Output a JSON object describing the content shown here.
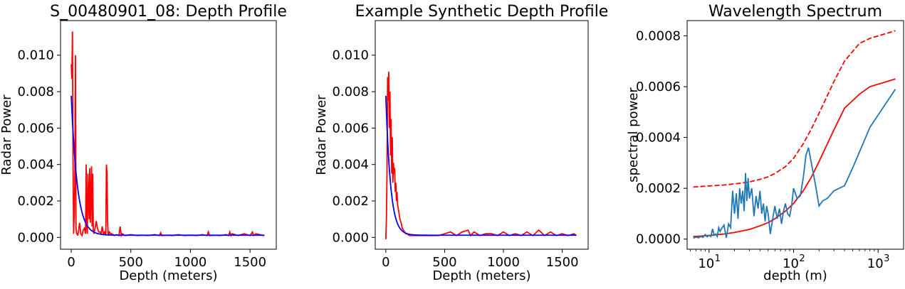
{
  "chart_data": [
    {
      "type": "line",
      "title": "S_00480901_08: Depth Profile",
      "xlabel": "Depth (meters)",
      "ylabel": "Radar Power",
      "xlim": [
        -90,
        1720
      ],
      "ylim": [
        -0.00065,
        0.0119
      ],
      "xscale": "linear",
      "xticks": [
        0,
        500,
        1000,
        1500
      ],
      "xtick_labels": [
        "0",
        "500",
        "1000",
        "1500"
      ],
      "yticks": [
        0.0,
        0.002,
        0.004,
        0.006,
        0.008,
        0.01
      ],
      "ytick_labels": [
        "0.000",
        "0.002",
        "0.004",
        "0.006",
        "0.008",
        "0.010"
      ],
      "grid": false,
      "series": [
        {
          "color": "#ff0000",
          "x": [
            0,
            5,
            10,
            15,
            20,
            25,
            30,
            35,
            40,
            45,
            50,
            55,
            60,
            70,
            80,
            90,
            100,
            110,
            120,
            125,
            130,
            135,
            140,
            150,
            155,
            160,
            170,
            175,
            180,
            185,
            190,
            200,
            210,
            220,
            230,
            240,
            250,
            260,
            270,
            280,
            290,
            295,
            300,
            305,
            310,
            320,
            330,
            340,
            360,
            380,
            400,
            410,
            420,
            430,
            450,
            500,
            550,
            600,
            650,
            700,
            740,
            750,
            760,
            800,
            850,
            900,
            950,
            1000,
            1050,
            1100,
            1140,
            1150,
            1160,
            1200,
            1250,
            1300,
            1320,
            1330,
            1340,
            1350,
            1400,
            1450,
            1500,
            1520,
            1530,
            1550,
            1600,
            1620
          ],
          "y": [
            0.0095,
            0.0087,
            0.0113,
            0.004,
            0.0002,
            0.0013,
            0.003,
            0.01,
            0.0005,
            0.0002,
            0.0002,
            0.0001,
            0.0003,
            0.0008,
            0.0002,
            0.0001,
            0.0004,
            0.0005,
            0.0002,
            0.004,
            0.0006,
            0.0002,
            0.0035,
            0.001,
            0.0038,
            0.0008,
            0.0039,
            0.0006,
            0.0035,
            0.0004,
            0.0002,
            0.0005,
            0.0009,
            0.0005,
            0.0003,
            0.0003,
            0.0002,
            0.0006,
            0.0002,
            0.0003,
            0.0001,
            0.004,
            0.0035,
            0.0009,
            0.0001,
            0.0003,
            0.0002,
            0.0002,
            0.0001,
            0.00015,
            0.0001,
            0.0006,
            0.0001,
            0.0002,
            0.0001,
            0.00015,
            0.0001,
            0.00012,
            0.0001,
            0.00015,
            0.0001,
            0.00025,
            0.0001,
            0.00012,
            0.0001,
            0.00015,
            0.0001,
            0.00012,
            0.0001,
            0.00015,
            0.0001,
            0.0003,
            0.0001,
            0.00012,
            0.0001,
            0.00015,
            0.0001,
            0.0003,
            0.0001,
            0.0002,
            0.0001,
            0.0002,
            0.0001,
            0.0003,
            0.0001,
            0.0002,
            0.00012,
            0.0001
          ]
        },
        {
          "color": "#0000ff",
          "function": "exp_decay",
          "amplitude": 0.00765,
          "decay_length": 50,
          "baseline": 0.00012,
          "x_range": [
            0,
            1620
          ]
        }
      ]
    },
    {
      "type": "line",
      "title": "Example Synthetic Depth Profile",
      "xlabel": "Depth (meters)",
      "ylabel": "Radar Power",
      "xlim": [
        -90,
        1720
      ],
      "ylim": [
        -0.00065,
        0.0119
      ],
      "xscale": "linear",
      "xticks": [
        0,
        500,
        1000,
        1500
      ],
      "xtick_labels": [
        "0",
        "500",
        "1000",
        "1500"
      ],
      "yticks": [
        0.0,
        0.002,
        0.004,
        0.006,
        0.008,
        0.01
      ],
      "ytick_labels": [
        "0.000",
        "0.002",
        "0.004",
        "0.006",
        "0.008",
        "0.010"
      ],
      "grid": false,
      "series": [
        {
          "color": "#ff0000",
          "x": [
            0,
            5,
            10,
            15,
            20,
            25,
            30,
            35,
            40,
            45,
            50,
            55,
            60,
            65,
            70,
            75,
            80,
            85,
            90,
            95,
            100,
            110,
            120,
            130,
            140,
            150,
            160,
            170,
            180,
            200,
            250,
            300,
            350,
            400,
            450,
            500,
            550,
            600,
            650,
            700,
            720,
            750,
            800,
            850,
            900,
            950,
            1000,
            1050,
            1100,
            1150,
            1200,
            1250,
            1300,
            1350,
            1400,
            1450,
            1500,
            1550,
            1600,
            1620
          ],
          "y": [
            -0.0001,
            0.001,
            0.0035,
            0.0088,
            0.0075,
            0.0091,
            0.006,
            0.008,
            0.0045,
            0.0065,
            0.0035,
            0.0055,
            0.003,
            0.0041,
            0.0035,
            0.0038,
            0.0025,
            0.003,
            0.002,
            0.0025,
            0.0018,
            0.0014,
            0.001,
            0.0008,
            0.0005,
            0.0004,
            0.0003,
            0.0002,
            0.0002,
            0.0001,
            0.0001,
            0.0001,
            0.0001,
            0.0001,
            0.0001,
            0.0002,
            0.0003,
            0.0001,
            0.0003,
            0.0004,
            0.0001,
            0.0003,
            0.0001,
            0.0002,
            0.0002,
            0.0001,
            0.0003,
            0.0001,
            0.0002,
            0.0001,
            0.0003,
            0.0001,
            0.0004,
            0.0001,
            0.0003,
            0.0001,
            0.0002,
            0.0001,
            0.0002,
            0.0001
          ]
        },
        {
          "color": "#0000ff",
          "function": "exp_decay",
          "amplitude": 0.00765,
          "decay_length": 40,
          "baseline": 0.00012,
          "x_range": [
            0,
            1620
          ]
        }
      ]
    },
    {
      "type": "line",
      "title": "Wavelength Spectrum",
      "xlabel": "depth (m)",
      "ylabel": "spectral power",
      "xlim": [
        5.5,
        2000
      ],
      "ylim": [
        -4e-05,
        0.00086
      ],
      "xscale": "log",
      "xticks": [
        10,
        100,
        1000
      ],
      "xtick_labels": [
        "10",
        "10",
        "10"
      ],
      "xtick_exponents": [
        "1",
        "2",
        "3"
      ],
      "yticks": [
        0.0,
        0.0002,
        0.0004,
        0.0006,
        0.0008
      ],
      "ytick_labels": [
        "0.0000",
        "0.0002",
        "0.0004",
        "0.0006",
        "0.0008"
      ],
      "grid": false,
      "series": [
        {
          "color": "#ff0000",
          "dash": "dashed",
          "x": [
            6.5,
            10,
            15,
            20,
            30,
            40,
            50,
            60,
            80,
            100,
            130,
            160,
            200,
            300,
            400,
            600,
            800,
            1600
          ],
          "y": [
            0.000205,
            0.000209,
            0.000213,
            0.000217,
            0.000225,
            0.000235,
            0.000245,
            0.000258,
            0.000285,
            0.000318,
            0.000375,
            0.00043,
            0.000495,
            0.00062,
            0.0007,
            0.00077,
            0.00079,
            0.00082
          ]
        },
        {
          "color": "#ff0000",
          "dash": "solid",
          "x": [
            6.5,
            10,
            15,
            20,
            30,
            40,
            50,
            60,
            80,
            100,
            130,
            160,
            200,
            300,
            400,
            600,
            800,
            1600
          ],
          "y": [
            1e-05,
            1.4e-05,
            2e-05,
            2.6e-05,
            3.8e-05,
            5.2e-05,
            6.5e-05,
            8e-05,
            0.00011,
            0.00014,
            0.00019,
            0.00024,
            0.000305,
            0.00043,
            0.000515,
            0.00057,
            0.0006,
            0.00063
          ]
        },
        {
          "color": "#1f77b4",
          "dash": "solid",
          "x": [
            6.5,
            7,
            7.5,
            8,
            8.5,
            9,
            9.5,
            10,
            10.5,
            11,
            11.5,
            12,
            12.5,
            13,
            13.5,
            14,
            15,
            16,
            17,
            18,
            19,
            20,
            21,
            22,
            23,
            24,
            25,
            26,
            27,
            28,
            29,
            30,
            32,
            34,
            36,
            38,
            40,
            42,
            44,
            46,
            48,
            50,
            53,
            56,
            60,
            64,
            68,
            72,
            76,
            80,
            85,
            90,
            95,
            100,
            110,
            120,
            130,
            140,
            150,
            160,
            180,
            200,
            220,
            250,
            300,
            400,
            500,
            800,
            1600
          ],
          "y": [
            3e-06,
            8e-06,
            5e-06,
            1e-05,
            7e-06,
            1.8e-05,
            9e-06,
            1.5e-05,
            1e-05,
            4e-05,
            1.5e-05,
            2e-05,
            1e-05,
            4.5e-05,
            3e-05,
            4e-05,
            5.5e-05,
            5e-06,
            6e-05,
            4.5e-05,
            0.00019,
            0.0001,
            0.00018,
            8e-05,
            0.0002,
            0.00014,
            0.00019,
            0.00011,
            0.00026,
            0.00015,
            0.00024,
            0.00016,
            0.0002,
            9e-05,
            0.00017,
            0.00012,
            0.00019,
            0.0001,
            0.00014,
            7e-05,
            0.00013,
            0.0001,
            2e-05,
            7e-05,
            0.00013,
            8e-05,
            0.00012,
            6e-05,
            0.00011,
            0.00014,
            0.0001,
            9e-05,
            0.000135,
            0.0002,
            0.00016,
            0.00017,
            0.00024,
            0.00033,
            0.00036,
            0.00031,
            0.00022,
            0.00013,
            0.00015,
            0.00016,
            0.00019,
            0.00021,
            0.00028,
            0.00044,
            0.00059
          ]
        }
      ]
    }
  ]
}
